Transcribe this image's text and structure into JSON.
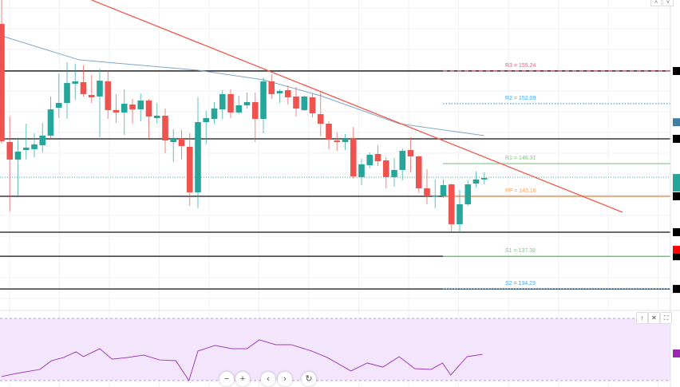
{
  "chart_data": {
    "type": "candlestick",
    "title": "",
    "colors": {
      "up": "#26a69a",
      "down": "#ef5350",
      "ma": "#7ea6c8",
      "trendline": "#f05a4a",
      "rsi": "#a03cc0",
      "rsi_band": "#f3e6fc",
      "current_price": "#26a69a"
    },
    "y_range": [
      131.8,
      162.08
    ],
    "candles": [
      [
        159.78,
        162.08,
        148.24,
        148.47
      ],
      [
        148.39,
        150.85,
        141.7,
        146.7
      ],
      [
        146.7,
        148.7,
        143.16,
        147.47
      ],
      [
        147.62,
        150.16,
        146.7,
        147.85
      ],
      [
        147.7,
        149.24,
        146.93,
        148.16
      ],
      [
        148.08,
        150.24,
        147.39,
        149.01
      ],
      [
        149.01,
        152.78,
        148.78,
        151.54
      ],
      [
        151.7,
        155.01,
        150.7,
        152.16
      ],
      [
        152.16,
        156.08,
        150.62,
        154.08
      ],
      [
        154.01,
        155.93,
        152.47,
        154.24
      ],
      [
        154.16,
        155.78,
        152.78,
        153.01
      ],
      [
        152.93,
        154.85,
        152.16,
        152.7
      ],
      [
        152.78,
        155.47,
        148.85,
        154.31
      ],
      [
        154.24,
        155.24,
        150.62,
        151.47
      ],
      [
        151.47,
        153.01,
        150.24,
        151.24
      ],
      [
        151.24,
        153.47,
        149.08,
        152.08
      ],
      [
        152.01,
        152.54,
        150.16,
        151.54
      ],
      [
        151.54,
        153.08,
        150.39,
        152.39
      ],
      [
        152.39,
        152.54,
        148.78,
        150.85
      ],
      [
        150.7,
        152.16,
        150.16,
        150.93
      ],
      [
        150.93,
        151.62,
        147.31,
        148.54
      ],
      [
        148.39,
        149.62,
        146.47,
        148.7
      ],
      [
        148.7,
        149.54,
        146.7,
        148.01
      ],
      [
        147.93,
        149.24,
        142.24,
        143.54
      ],
      [
        143.54,
        152.7,
        142.01,
        150.31
      ],
      [
        150.31,
        151.39,
        148.16,
        150.7
      ],
      [
        150.62,
        152.24,
        150.16,
        151.62
      ],
      [
        151.54,
        153.39,
        150.62,
        153.01
      ],
      [
        153.01,
        153.47,
        150.7,
        151.24
      ],
      [
        151.24,
        152.85,
        151.08,
        151.93
      ],
      [
        151.93,
        153.16,
        151.62,
        152.24
      ],
      [
        152.24,
        153.16,
        148.39,
        150.62
      ],
      [
        150.62,
        154.62,
        149.24,
        154.24
      ],
      [
        154.24,
        154.93,
        152.54,
        153.01
      ],
      [
        153.08,
        153.47,
        152.16,
        153.31
      ],
      [
        153.39,
        153.85,
        152.01,
        152.7
      ],
      [
        152.78,
        153.7,
        150.85,
        151.62
      ],
      [
        151.47,
        152.85,
        151.39,
        152.78
      ],
      [
        152.7,
        153.08,
        150.78,
        151.16
      ],
      [
        151.08,
        153.31,
        148.93,
        150.16
      ],
      [
        150.16,
        150.39,
        147.7,
        148.62
      ],
      [
        148.54,
        149.31,
        147.54,
        148.39
      ],
      [
        148.39,
        149.16,
        147.62,
        148.7
      ],
      [
        148.78,
        149.85,
        144.85,
        145.08
      ],
      [
        145.01,
        146.78,
        144.24,
        146.24
      ],
      [
        146.16,
        147.39,
        145.85,
        147.16
      ],
      [
        147.24,
        148.08,
        146.08,
        146.54
      ],
      [
        146.62,
        146.93,
        143.93,
        145.01
      ],
      [
        145.01,
        146.85,
        144.08,
        145.7
      ],
      [
        145.7,
        147.78,
        144.7,
        147.54
      ],
      [
        147.62,
        148.85,
        145.47,
        147.01
      ],
      [
        147.01,
        147.08,
        143.54,
        143.93
      ],
      [
        143.93,
        145.78,
        142.39,
        143.16
      ],
      [
        143.16,
        144.78,
        142.01,
        143.24
      ],
      [
        143.16,
        144.78,
        143.01,
        144.24
      ],
      [
        144.31,
        144.39,
        139.78,
        140.47
      ],
      [
        140.47,
        143.78,
        139.7,
        142.39
      ],
      [
        142.39,
        144.7,
        142.24,
        144.31
      ],
      [
        144.39,
        145.54,
        144.01,
        144.78
      ],
      [
        144.78,
        145.47,
        144.31,
        144.93
      ]
    ],
    "moving_average": [
      [
        0,
        158.62
      ],
      [
        9.5,
        156.31
      ],
      [
        24,
        155.31
      ],
      [
        32,
        154.39
      ],
      [
        39,
        152.85
      ],
      [
        48.6,
        150.16
      ],
      [
        59,
        149.01
      ]
    ],
    "trendline": [
      [
        11.0,
        162.08
      ],
      [
        75.9,
        141.62
      ]
    ],
    "horizontal_lines": [
      155.24,
      148.7,
      143.16,
      139.7,
      137.38,
      134.23
    ],
    "current_price": 145.0,
    "pivot_levels": [
      {
        "label": "R3 = 155.24",
        "value": 155.24,
        "color": "#e0607e",
        "style": "dashed"
      },
      {
        "label": "R2 = 152.09",
        "value": 152.09,
        "color": "#42a5f5",
        "style": "dotted"
      },
      {
        "label": "R1 = 146.31",
        "value": 146.31,
        "color": "#81c784",
        "style": "solid"
      },
      {
        "label": "PP = 143.16",
        "value": 143.16,
        "color": "#ffa060",
        "style": "solid"
      },
      {
        "label": "S1 = 137.38",
        "value": 137.38,
        "color": "#81c784",
        "style": "solid"
      },
      {
        "label": "S2 = 134.23",
        "value": 134.23,
        "color": "#42a5f5",
        "style": "dotted"
      }
    ],
    "price_tags": [
      {
        "value": 150.3,
        "color": "#3d7fa6"
      },
      {
        "value": 145.0,
        "color": "#26a69a"
      },
      {
        "value": 138.0,
        "color": "#ff0000"
      }
    ],
    "rsi": {
      "range": [
        30,
        70
      ],
      "band": [
        30,
        70
      ],
      "points": [
        [
          0,
          32.6
        ],
        [
          1.8,
          34.6
        ],
        [
          4.7,
          37.2
        ],
        [
          6.1,
          42.8
        ],
        [
          7.6,
          44.9
        ],
        [
          9.1,
          48.5
        ],
        [
          10,
          45.4
        ],
        [
          12,
          50.5
        ],
        [
          13.5,
          43.8
        ],
        [
          15.4,
          44.9
        ],
        [
          17.4,
          46.4
        ],
        [
          19.3,
          43.3
        ],
        [
          21.3,
          42.8
        ],
        [
          22.9,
          30
        ],
        [
          24,
          49
        ],
        [
          26.1,
          52.6
        ],
        [
          28.1,
          50.5
        ],
        [
          30,
          50.5
        ],
        [
          31.5,
          56.2
        ],
        [
          33.5,
          53.1
        ],
        [
          35.4,
          53.1
        ],
        [
          37.9,
          49
        ],
        [
          39.8,
          44.9
        ],
        [
          42.7,
          36.2
        ],
        [
          44.7,
          41.3
        ],
        [
          46.6,
          38.7
        ],
        [
          48.6,
          45.4
        ],
        [
          50.5,
          37.7
        ],
        [
          52.5,
          37.2
        ],
        [
          53.9,
          41.3
        ],
        [
          54.9,
          33.6
        ],
        [
          56.9,
          45.4
        ],
        [
          58.8,
          46.9
        ]
      ]
    }
  },
  "controls": {
    "zoom_out": "−",
    "zoom_in": "+",
    "scroll_left": "‹",
    "scroll_right": "›",
    "reset": "↻",
    "pane_move_up": "↑",
    "pane_close": "✕",
    "pane_maximize": "⛶",
    "top_up": "˄",
    "top_down": "˅"
  }
}
